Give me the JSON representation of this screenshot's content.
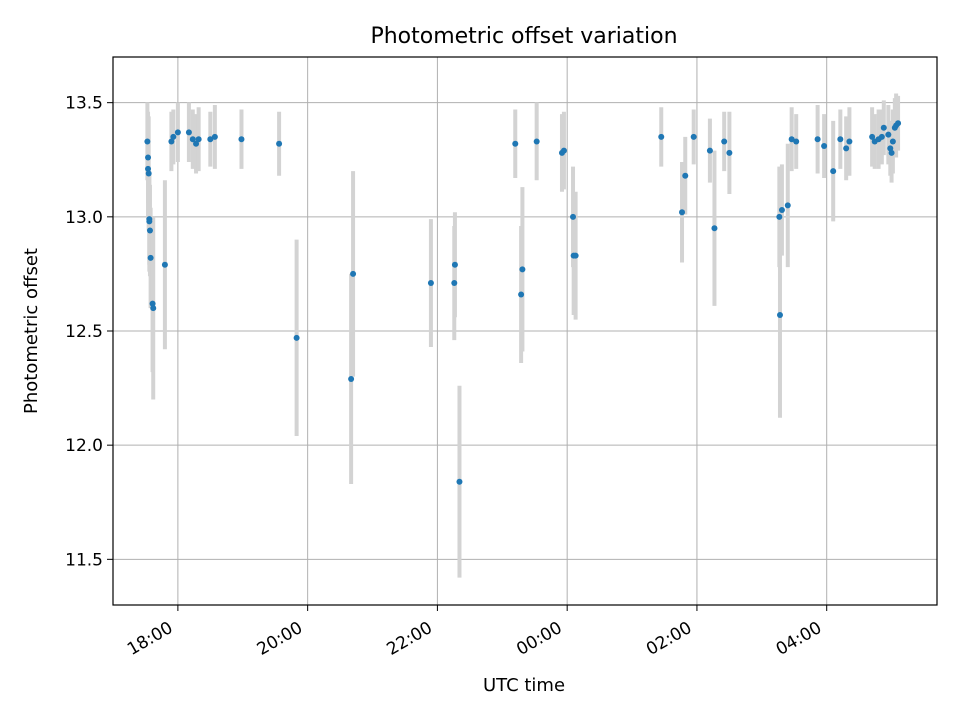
{
  "chart_data": {
    "type": "scatter",
    "title": "Photometric offset variation",
    "xlabel": "UTC time",
    "ylabel": "Photometric offset",
    "x_unit": "hours since 00:00 UTC (midnight of the 00:00 tick)",
    "xlim": [
      -7.0,
      5.7
    ],
    "ylim": [
      11.3,
      13.7
    ],
    "grid": true,
    "x_ticks": [
      {
        "label": "18:00",
        "value": -6
      },
      {
        "label": "20:00",
        "value": -4
      },
      {
        "label": "22:00",
        "value": -2
      },
      {
        "label": "00:00",
        "value": 0
      },
      {
        "label": "02:00",
        "value": 2
      },
      {
        "label": "04:00",
        "value": 4
      }
    ],
    "y_ticks": [
      {
        "label": "11.5",
        "value": 11.5
      },
      {
        "label": "12.0",
        "value": 12.0
      },
      {
        "label": "12.5",
        "value": 12.5
      },
      {
        "label": "13.0",
        "value": 13.0
      },
      {
        "label": "13.5",
        "value": 13.5
      }
    ],
    "colors": {
      "points": "#1f77b4",
      "errorbars": "#d3d3d3",
      "grid": "#b0b0b0"
    },
    "points": [
      {
        "x": -6.47,
        "y": 13.33,
        "err": 0.17
      },
      {
        "x": -6.46,
        "y": 13.26,
        "err": 0.2
      },
      {
        "x": -6.46,
        "y": 13.21,
        "err": 0.22
      },
      {
        "x": -6.45,
        "y": 13.19,
        "err": 0.25
      },
      {
        "x": -6.44,
        "y": 12.99,
        "err": 0.2
      },
      {
        "x": -6.44,
        "y": 12.98,
        "err": 0.22
      },
      {
        "x": -6.43,
        "y": 12.94,
        "err": 0.2
      },
      {
        "x": -6.42,
        "y": 12.82,
        "err": 0.22
      },
      {
        "x": -6.39,
        "y": 12.62,
        "err": 0.3
      },
      {
        "x": -6.38,
        "y": 12.6,
        "err": 0.4
      },
      {
        "x": -6.2,
        "y": 12.79,
        "err": 0.37
      },
      {
        "x": -6.1,
        "y": 13.33,
        "err": 0.13
      },
      {
        "x": -6.07,
        "y": 13.35,
        "err": 0.12
      },
      {
        "x": -6.0,
        "y": 13.37,
        "err": 0.13
      },
      {
        "x": -5.83,
        "y": 13.37,
        "err": 0.13
      },
      {
        "x": -5.77,
        "y": 13.34,
        "err": 0.13
      },
      {
        "x": -5.72,
        "y": 13.32,
        "err": 0.13
      },
      {
        "x": -5.68,
        "y": 13.34,
        "err": 0.14
      },
      {
        "x": -5.5,
        "y": 13.34,
        "err": 0.12
      },
      {
        "x": -5.43,
        "y": 13.35,
        "err": 0.14
      },
      {
        "x": -5.02,
        "y": 13.34,
        "err": 0.13
      },
      {
        "x": -4.44,
        "y": 13.32,
        "err": 0.14
      },
      {
        "x": -4.17,
        "y": 12.47,
        "err": 0.43
      },
      {
        "x": -3.33,
        "y": 12.29,
        "err": 0.46
      },
      {
        "x": -3.3,
        "y": 12.75,
        "err": 0.45
      },
      {
        "x": -2.1,
        "y": 12.71,
        "err": 0.28
      },
      {
        "x": -1.74,
        "y": 12.71,
        "err": 0.25
      },
      {
        "x": -1.73,
        "y": 12.79,
        "err": 0.23
      },
      {
        "x": -1.66,
        "y": 11.84,
        "err": 0.42
      },
      {
        "x": -0.8,
        "y": 13.32,
        "err": 0.15
      },
      {
        "x": -0.71,
        "y": 12.66,
        "err": 0.3
      },
      {
        "x": -0.69,
        "y": 12.77,
        "err": 0.36
      },
      {
        "x": -0.47,
        "y": 13.33,
        "err": 0.17
      },
      {
        "x": -0.08,
        "y": 13.28,
        "err": 0.17
      },
      {
        "x": -0.05,
        "y": 13.29,
        "err": 0.17
      },
      {
        "x": 0.09,
        "y": 13.0,
        "err": 0.22
      },
      {
        "x": 0.1,
        "y": 12.83,
        "err": 0.26
      },
      {
        "x": 0.13,
        "y": 12.83,
        "err": 0.28
      },
      {
        "x": 1.45,
        "y": 13.35,
        "err": 0.13
      },
      {
        "x": 1.77,
        "y": 13.02,
        "err": 0.22
      },
      {
        "x": 1.82,
        "y": 13.18,
        "err": 0.17
      },
      {
        "x": 1.95,
        "y": 13.35,
        "err": 0.12
      },
      {
        "x": 2.2,
        "y": 13.29,
        "err": 0.14
      },
      {
        "x": 2.27,
        "y": 12.95,
        "err": 0.34
      },
      {
        "x": 2.42,
        "y": 13.33,
        "err": 0.13
      },
      {
        "x": 2.5,
        "y": 13.28,
        "err": 0.18
      },
      {
        "x": 3.27,
        "y": 13.0,
        "err": 0.22
      },
      {
        "x": 3.28,
        "y": 12.57,
        "err": 0.45
      },
      {
        "x": 3.31,
        "y": 13.03,
        "err": 0.2
      },
      {
        "x": 3.4,
        "y": 13.05,
        "err": 0.27
      },
      {
        "x": 3.46,
        "y": 13.34,
        "err": 0.14
      },
      {
        "x": 3.53,
        "y": 13.33,
        "err": 0.12
      },
      {
        "x": 3.86,
        "y": 13.34,
        "err": 0.15
      },
      {
        "x": 3.96,
        "y": 13.31,
        "err": 0.14
      },
      {
        "x": 4.1,
        "y": 13.2,
        "err": 0.22
      },
      {
        "x": 4.21,
        "y": 13.34,
        "err": 0.13
      },
      {
        "x": 4.3,
        "y": 13.3,
        "err": 0.14
      },
      {
        "x": 4.35,
        "y": 13.33,
        "err": 0.15
      },
      {
        "x": 4.7,
        "y": 13.35,
        "err": 0.13
      },
      {
        "x": 4.74,
        "y": 13.33,
        "err": 0.12
      },
      {
        "x": 4.8,
        "y": 13.34,
        "err": 0.13
      },
      {
        "x": 4.85,
        "y": 13.35,
        "err": 0.12
      },
      {
        "x": 4.88,
        "y": 13.39,
        "err": 0.12
      },
      {
        "x": 4.95,
        "y": 13.36,
        "err": 0.13
      },
      {
        "x": 4.98,
        "y": 13.3,
        "err": 0.12
      },
      {
        "x": 5.0,
        "y": 13.28,
        "err": 0.13
      },
      {
        "x": 5.02,
        "y": 13.33,
        "err": 0.14
      },
      {
        "x": 5.05,
        "y": 13.39,
        "err": 0.13
      },
      {
        "x": 5.07,
        "y": 13.4,
        "err": 0.14
      },
      {
        "x": 5.1,
        "y": 13.41,
        "err": 0.12
      }
    ]
  }
}
